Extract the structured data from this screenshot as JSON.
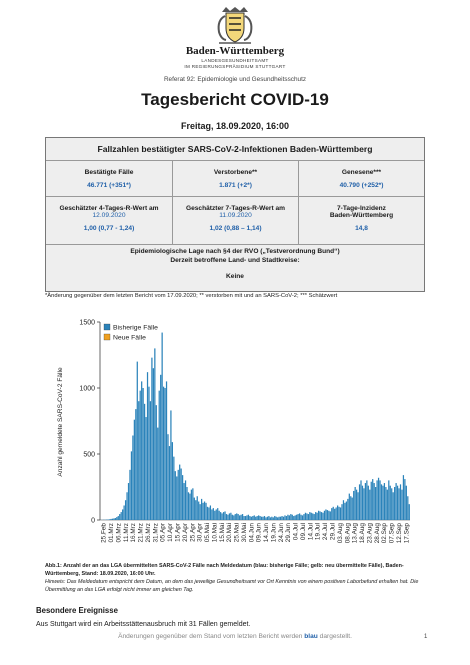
{
  "header": {
    "org_name": "Baden-Württemberg",
    "org_line1": "LANDESGESUNDHEITSAMT",
    "org_line2": "IM REGIERUNGSPRÄSIDIUM STUTTGART",
    "referat": "Referat 92: Epidemiologie und Gesundheitsschutz"
  },
  "report": {
    "title": "Tagesbericht COVID-19",
    "date": "Freitag, 18.09.2020, 16:00"
  },
  "table": {
    "heading": "Fallzahlen bestätigter SARS-CoV-2-Infektionen Baden-Württemberg",
    "cases_label": "Bestätigte Fälle",
    "cases_value": "46.771 (+351*)",
    "deaths_label": "Verstorbene**",
    "deaths_value": "1.871 (+2*)",
    "recovered_label": "Genesene***",
    "recovered_value": "40.790 (+252*)",
    "r4_label": "Geschätzter 4-Tages-R-Wert am",
    "r4_date": "12.09.2020",
    "r4_value": "1,00 (0,77 - 1,24)",
    "r7_label": "Geschätzter 7-Tages-R-Wert am",
    "r7_date": "11.09.2020",
    "r7_value": "1,02 (0,88 – 1,14)",
    "incidence_label1": "7-Tage-Inzidenz",
    "incidence_label2": "Baden-Württemberg",
    "incidence_value": "14,8",
    "epi_line1": "Epidemiologische Lage nach §4 der RVO („Testverordnung Bund“)",
    "epi_line2": "Derzeit betroffene Land- und Stadtkreise:",
    "epi_value": "Keine"
  },
  "footnote": "*Änderung gegenüber dem letzten Bericht vom 17.09.2020; ** verstorben mit und an SARS-CoV-2; *** Schätzwert",
  "chart_data": {
    "type": "bar",
    "ylabel": "Anzahl gemeldete SARS-CoV-2 Fälle",
    "ylim": [
      0,
      1500
    ],
    "yticks": [
      0,
      500,
      1000,
      1500
    ],
    "xtick_labels": [
      "25.Feb",
      "01.Mrz",
      "06.Mrz",
      "11.Mrz",
      "16.Mrz",
      "21.Mrz",
      "26.Mrz",
      "31.Mrz",
      "05.Apr",
      "10.Apr",
      "15.Apr",
      "20.Apr",
      "25.Apr",
      "30.Apr",
      "05.Mai",
      "10.Mai",
      "15.Mai",
      "20.Mai",
      "25.Mai",
      "30.Mai",
      "04.Jun",
      "09.Jun",
      "14.Jun",
      "19.Jun",
      "24.Jun",
      "29.Jun",
      "04.Jul",
      "09.Jul",
      "14.Jul",
      "19.Jul",
      "24.Jul",
      "29.Jul",
      "03.Aug",
      "08.Aug",
      "13.Aug",
      "18.Aug",
      "23.Aug",
      "28.Aug",
      "02.Sep",
      "07.Sep",
      "12.Sep",
      "17.Sep"
    ],
    "series": [
      {
        "name": "Bisherige Fälle",
        "color": "#2b83ba",
        "values": [
          1,
          1,
          2,
          2,
          3,
          4,
          5,
          8,
          10,
          12,
          15,
          22,
          30,
          45,
          60,
          80,
          110,
          150,
          210,
          280,
          380,
          520,
          640,
          760,
          840,
          1200,
          900,
          980,
          1050,
          1000,
          880,
          780,
          1120,
          1010,
          900,
          1230,
          1150,
          1300,
          870,
          700,
          980,
          1100,
          1420,
          1010,
          1000,
          1050,
          650,
          560,
          830,
          590,
          480,
          370,
          330,
          380,
          420,
          390,
          340,
          280,
          300,
          250,
          210,
          200,
          230,
          240,
          170,
          150,
          180,
          140,
          120,
          160,
          130,
          140,
          130,
          100,
          95,
          110,
          80,
          90,
          70,
          80,
          90,
          70,
          60,
          50,
          60,
          65,
          45,
          40,
          50,
          55,
          40,
          35,
          45,
          50,
          45,
          35,
          40,
          45,
          30,
          30,
          35,
          40,
          30,
          25,
          30,
          35,
          25,
          30,
          35,
          30,
          25,
          25,
          30,
          20,
          25,
          30,
          20,
          25,
          20,
          30,
          25,
          20,
          25,
          25,
          30,
          25,
          35,
          30,
          40,
          35,
          45,
          40,
          30,
          35,
          40,
          45,
          50,
          40,
          35,
          45,
          55,
          50,
          45,
          60,
          55,
          50,
          45,
          60,
          55,
          70,
          65,
          60,
          55,
          70,
          80,
          75,
          70,
          65,
          90,
          100,
          85,
          95,
          110,
          100,
          95,
          120,
          150,
          130,
          140,
          160,
          200,
          180,
          170,
          220,
          250,
          230,
          210,
          270,
          300,
          260,
          240,
          280,
          300,
          260,
          230,
          290,
          310,
          280,
          250,
          300,
          320,
          300,
          270,
          260,
          280,
          250,
          230,
          300,
          260,
          240,
          210,
          250,
          280,
          260,
          240,
          270,
          230,
          340,
          310,
          260,
          180,
          120
        ]
      },
      {
        "name": "Neue Fälle",
        "color": "#f0a020",
        "values": [
          0,
          0,
          0,
          0,
          0,
          0,
          0,
          0,
          0,
          0,
          0,
          0,
          0,
          0,
          0,
          0,
          0,
          0,
          0,
          0,
          0,
          0,
          0,
          0,
          0,
          0,
          0,
          0,
          0,
          0,
          0,
          0,
          0,
          0,
          0,
          0,
          0,
          0,
          0,
          0,
          0,
          0,
          0,
          0,
          0,
          0,
          0,
          0,
          0,
          0,
          0,
          0,
          0,
          0,
          0,
          0,
          0,
          0,
          0,
          0,
          0,
          0,
          0,
          0,
          0,
          0,
          0,
          0,
          0,
          0,
          0,
          0,
          0,
          0,
          0,
          0,
          0,
          0,
          0,
          0,
          0,
          0,
          0,
          0,
          0,
          0,
          0,
          0,
          0,
          0,
          0,
          0,
          0,
          0,
          0,
          0,
          0,
          0,
          0,
          0,
          0,
          0,
          0,
          0,
          0,
          0,
          0,
          0,
          0,
          0,
          0,
          0,
          0,
          0,
          0,
          0,
          0,
          0,
          0,
          0,
          0,
          0,
          0,
          0,
          0,
          0,
          0,
          0,
          0,
          0,
          0,
          0,
          0,
          0,
          0,
          0,
          0,
          0,
          0,
          0,
          0,
          0,
          0,
          0,
          0,
          0,
          0,
          0,
          0,
          0,
          0,
          0,
          0,
          0,
          0,
          0,
          0,
          0,
          0,
          0,
          0,
          0,
          0,
          0,
          0,
          0,
          0,
          0,
          0,
          0,
          0,
          0,
          0,
          0,
          0,
          0,
          0,
          0,
          0,
          0,
          0,
          0,
          0,
          0,
          0,
          0,
          0,
          0,
          0,
          0,
          0,
          0,
          0,
          0,
          0,
          0,
          0,
          0,
          0,
          0,
          0,
          0,
          0,
          0,
          0,
          0,
          0,
          0,
          0,
          0,
          0,
          0,
          0,
          0,
          0,
          0,
          0,
          5,
          10,
          20,
          40,
          60,
          100,
          110
        ]
      }
    ],
    "legend_position": "top-left",
    "grid": false
  },
  "caption": {
    "bold": "Abb.1: Anzahl der an das LGA übermittelten SARS-CoV-2 Fälle nach Meldedatum (blau: bisherige Fälle; gelb: neu übermittelte Fälle), Baden-Württemberg, Stand: 18.09.2020, 16:00 Uhr.",
    "italic": "Hinweis: Das Meldedatum entspricht dem Datum, an dem das jeweilige Gesundheitsamt vor Ort Kenntnis von einem positiven Laborbefund erhalten hat. Die Übermittlung an das LGA erfolgt nicht immer am gleichen Tag."
  },
  "events": {
    "heading": "Besondere Ereignisse",
    "text": "Aus Stuttgart wird ein Arbeitsstättenausbruch mit 31 Fällen gemeldet."
  },
  "footer": {
    "text_before": "Änderungen gegenüber dem Stand vom letzten Bericht werden ",
    "text_blue": "blau",
    "text_after": " dargestellt.",
    "page_number": "1"
  },
  "colors": {
    "accent_blue": "#1f5fa8",
    "table_bg": "#eeeeee",
    "bar_blue": "#2b83ba",
    "bar_yellow": "#f0a020"
  }
}
